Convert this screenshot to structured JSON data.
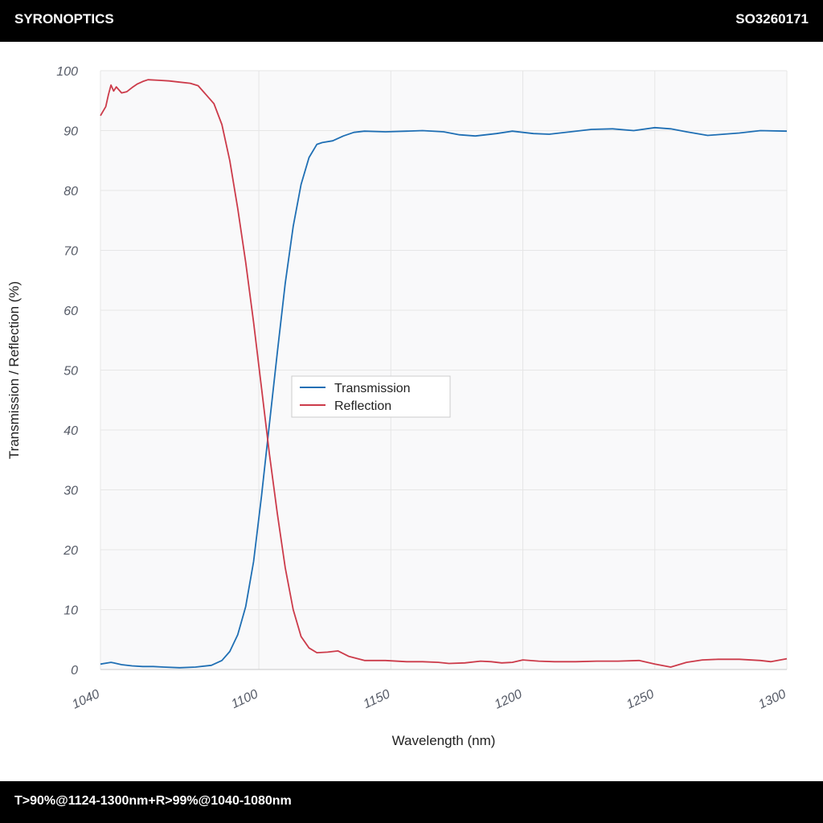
{
  "header": {
    "brand": "SYRONOPTICS",
    "code": "SO3260171"
  },
  "footer": {
    "spec": "T>90%@1124-1300nm+R>99%@1040-1080nm"
  },
  "colors": {
    "transmission": "#1f6fb4",
    "reflection": "#cc3b4a",
    "grid": "#e6e6e6",
    "plot_bg": "#f9f9fa"
  },
  "chart_data": {
    "type": "line",
    "title": "",
    "xlabel": "Wavelength (nm)",
    "ylabel": "Transmission / Reflection (%)",
    "xlim": [
      1040,
      1300
    ],
    "ylim": [
      0,
      100
    ],
    "xticks": [
      1040,
      1100,
      1150,
      1200,
      1250,
      1300
    ],
    "yticks": [
      0,
      10,
      20,
      30,
      40,
      50,
      60,
      70,
      80,
      90,
      100
    ],
    "grid": true,
    "legend_position": "center",
    "series": [
      {
        "name": "Transmission",
        "color": "#1f6fb4",
        "points": [
          [
            1040,
            0.9
          ],
          [
            1044,
            1.2
          ],
          [
            1045,
            1.1
          ],
          [
            1048,
            0.8
          ],
          [
            1052,
            0.6
          ],
          [
            1056,
            0.5
          ],
          [
            1060,
            0.5
          ],
          [
            1064,
            0.4
          ],
          [
            1070,
            0.3
          ],
          [
            1076,
            0.4
          ],
          [
            1082,
            0.7
          ],
          [
            1086,
            1.5
          ],
          [
            1089,
            3.0
          ],
          [
            1092,
            5.8
          ],
          [
            1095,
            10.5
          ],
          [
            1098,
            18.0
          ],
          [
            1101,
            29.0
          ],
          [
            1104,
            41.0
          ],
          [
            1107,
            53.0
          ],
          [
            1110,
            64.5
          ],
          [
            1113,
            74.0
          ],
          [
            1116,
            81.0
          ],
          [
            1119,
            85.5
          ],
          [
            1122,
            87.7
          ],
          [
            1124,
            88.0
          ],
          [
            1128,
            88.3
          ],
          [
            1132,
            89.1
          ],
          [
            1136,
            89.7
          ],
          [
            1140,
            89.9
          ],
          [
            1148,
            89.8
          ],
          [
            1156,
            89.9
          ],
          [
            1162,
            90.0
          ],
          [
            1170,
            89.8
          ],
          [
            1176,
            89.3
          ],
          [
            1182,
            89.1
          ],
          [
            1190,
            89.5
          ],
          [
            1196,
            89.9
          ],
          [
            1204,
            89.5
          ],
          [
            1210,
            89.4
          ],
          [
            1218,
            89.8
          ],
          [
            1226,
            90.2
          ],
          [
            1234,
            90.3
          ],
          [
            1242,
            90.0
          ],
          [
            1250,
            90.5
          ],
          [
            1256,
            90.3
          ],
          [
            1262,
            89.8
          ],
          [
            1270,
            89.2
          ],
          [
            1276,
            89.4
          ],
          [
            1282,
            89.6
          ],
          [
            1290,
            90.0
          ],
          [
            1300,
            89.9
          ]
        ]
      },
      {
        "name": "Reflection",
        "color": "#cc3b4a",
        "points": [
          [
            1040,
            92.5
          ],
          [
            1042,
            94.0
          ],
          [
            1043,
            96.0
          ],
          [
            1044,
            97.6
          ],
          [
            1045,
            96.6
          ],
          [
            1046,
            97.3
          ],
          [
            1048,
            96.3
          ],
          [
            1050,
            96.5
          ],
          [
            1052,
            97.2
          ],
          [
            1054,
            97.8
          ],
          [
            1056,
            98.2
          ],
          [
            1058,
            98.5
          ],
          [
            1062,
            98.4
          ],
          [
            1066,
            98.3
          ],
          [
            1070,
            98.1
          ],
          [
            1074,
            97.9
          ],
          [
            1077,
            97.5
          ],
          [
            1080,
            96.0
          ],
          [
            1083,
            94.5
          ],
          [
            1086,
            91.0
          ],
          [
            1089,
            85.0
          ],
          [
            1092,
            77.0
          ],
          [
            1095,
            68.0
          ],
          [
            1098,
            58.0
          ],
          [
            1101,
            47.0
          ],
          [
            1104,
            36.0
          ],
          [
            1107,
            26.0
          ],
          [
            1110,
            17.0
          ],
          [
            1113,
            10.0
          ],
          [
            1116,
            5.5
          ],
          [
            1119,
            3.6
          ],
          [
            1122,
            2.8
          ],
          [
            1126,
            2.9
          ],
          [
            1130,
            3.1
          ],
          [
            1134,
            2.2
          ],
          [
            1140,
            1.5
          ],
          [
            1148,
            1.5
          ],
          [
            1156,
            1.3
          ],
          [
            1162,
            1.3
          ],
          [
            1168,
            1.2
          ],
          [
            1172,
            1.0
          ],
          [
            1178,
            1.1
          ],
          [
            1184,
            1.4
          ],
          [
            1188,
            1.3
          ],
          [
            1192,
            1.1
          ],
          [
            1196,
            1.2
          ],
          [
            1200,
            1.6
          ],
          [
            1206,
            1.4
          ],
          [
            1212,
            1.3
          ],
          [
            1220,
            1.3
          ],
          [
            1228,
            1.4
          ],
          [
            1236,
            1.4
          ],
          [
            1244,
            1.5
          ],
          [
            1250,
            0.9
          ],
          [
            1256,
            0.4
          ],
          [
            1262,
            1.2
          ],
          [
            1268,
            1.6
          ],
          [
            1274,
            1.7
          ],
          [
            1282,
            1.7
          ],
          [
            1290,
            1.5
          ],
          [
            1294,
            1.3
          ],
          [
            1300,
            1.8
          ]
        ]
      }
    ]
  }
}
